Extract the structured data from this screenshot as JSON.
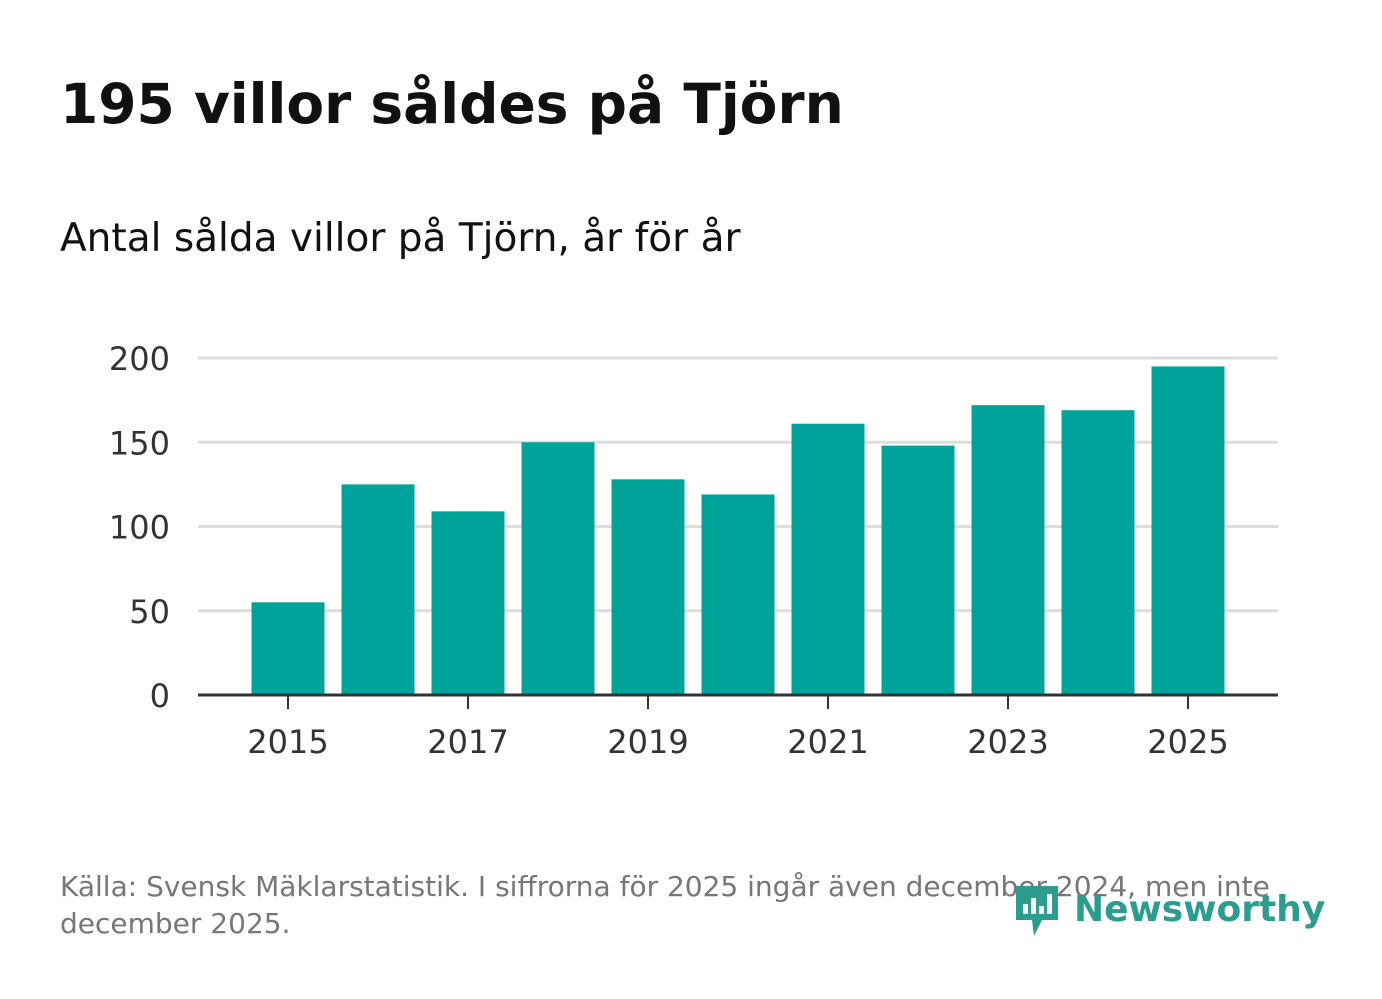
{
  "title": "195 villor såldes på Tjörn",
  "subtitle": "Antal sålda villor på Tjörn, år för år",
  "source": "Källa: Svensk Mäklarstatistik. I siffrorna för 2025 ingår även december 2024, men inte december 2025.",
  "logo": {
    "text": "Newsworthy",
    "icon": "newsworthy-logo-icon"
  },
  "colors": {
    "bar": "#00a39a",
    "grid": "#dddddd",
    "axis": "#333333",
    "logo": "#2a9d8f"
  },
  "chart_data": {
    "type": "bar",
    "title": "195 villor såldes på Tjörn",
    "subtitle": "Antal sålda villor på Tjörn, år för år",
    "xlabel": "",
    "ylabel": "",
    "categories": [
      "2015",
      "2016",
      "2017",
      "2018",
      "2019",
      "2020",
      "2021",
      "2022",
      "2023",
      "2024",
      "2025"
    ],
    "values": [
      55,
      125,
      109,
      150,
      128,
      119,
      161,
      148,
      172,
      169,
      195
    ],
    "ylim": [
      0,
      200
    ],
    "yticks": [
      0,
      50,
      100,
      150,
      200
    ],
    "xtick_labels": [
      "2015",
      "2017",
      "2019",
      "2021",
      "2023",
      "2025"
    ],
    "grid": true
  }
}
